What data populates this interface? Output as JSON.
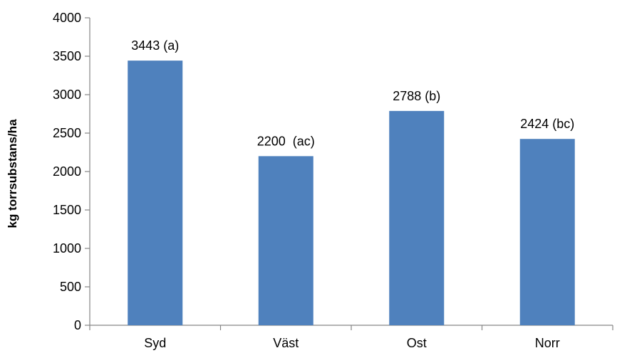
{
  "chart_data": {
    "type": "bar",
    "categories": [
      "Syd",
      "Väst",
      "Ost",
      "Norr"
    ],
    "values": [
      3443,
      2200,
      2788,
      2424
    ],
    "data_labels": [
      "3443 (a)",
      "2200  (ac)",
      "2788 (b)",
      "2424 (bc)"
    ],
    "title": "",
    "xlabel": "",
    "ylabel": "kg torrsubstans/ha",
    "ylim": [
      0,
      4000
    ],
    "yticks": [
      0,
      500,
      1000,
      1500,
      2000,
      2500,
      3000,
      3500,
      4000
    ],
    "grid": false,
    "legend": "none",
    "bar_color": "#4f81bd",
    "axis_color": "#868686"
  }
}
